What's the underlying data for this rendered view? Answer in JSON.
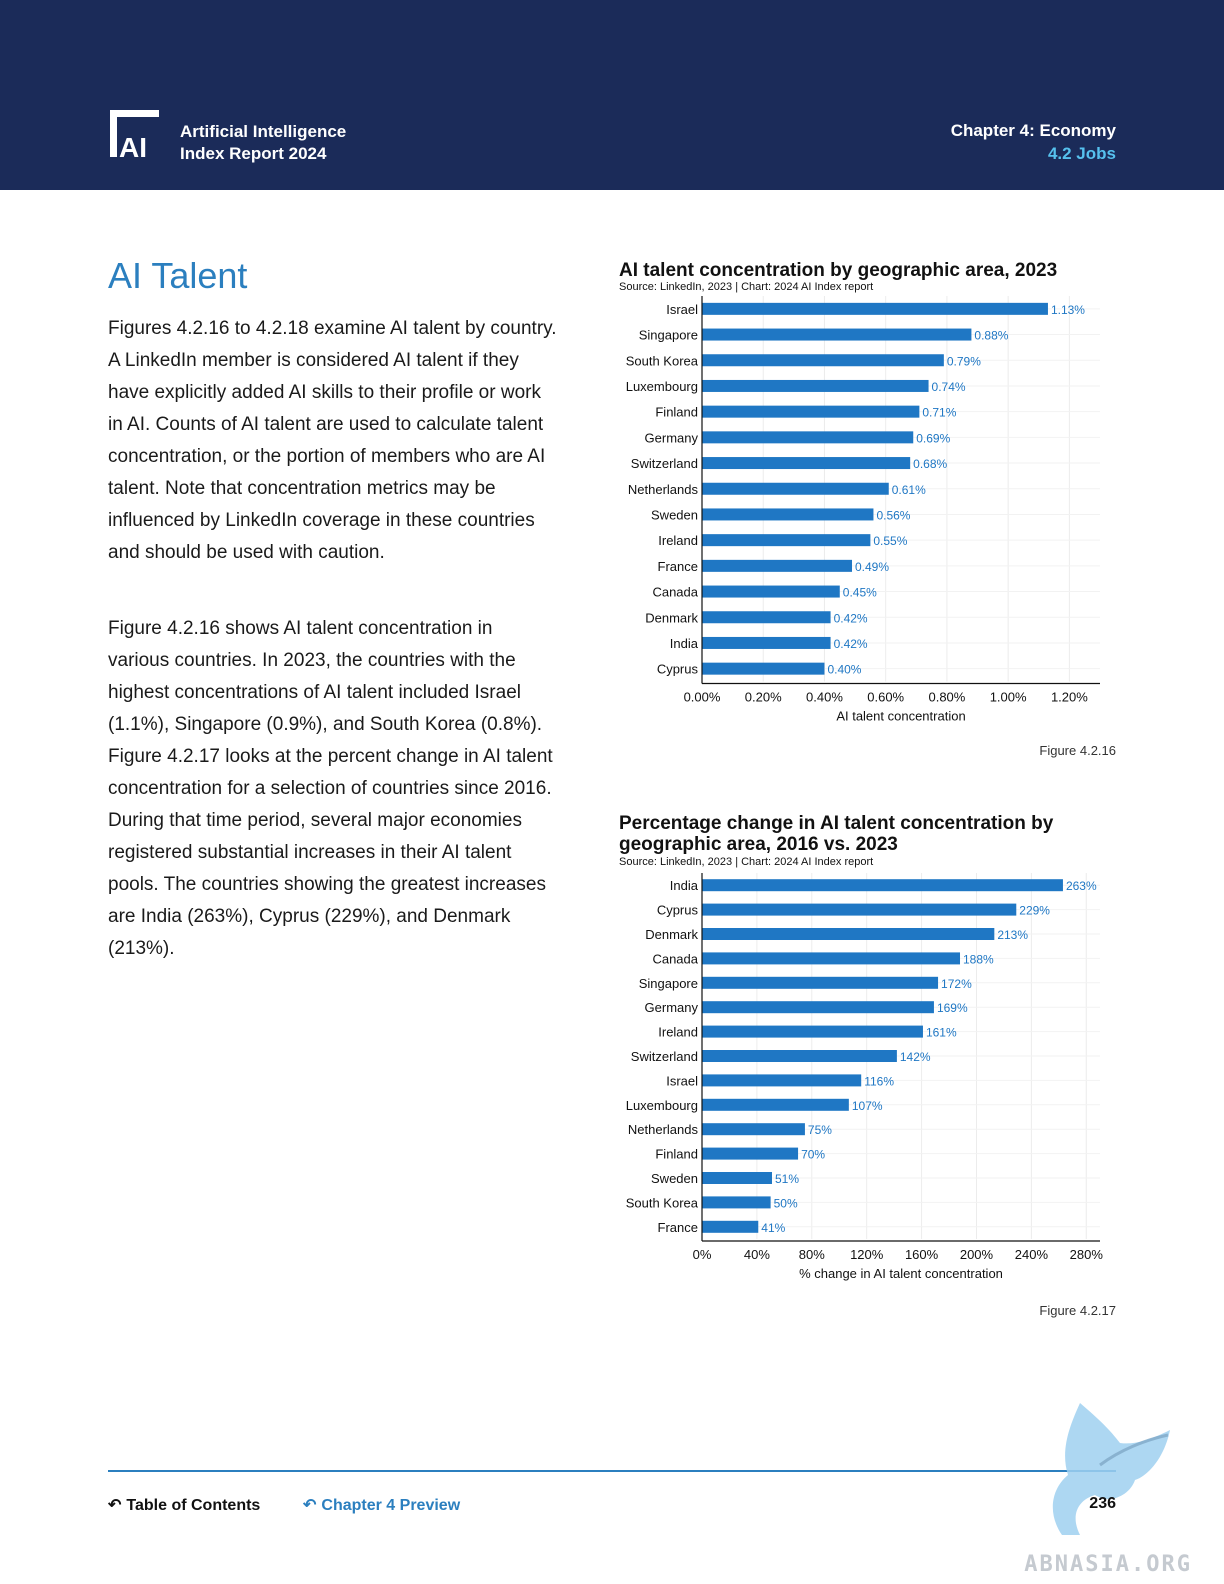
{
  "header": {
    "report_line1": "Artificial Intelligence",
    "report_line2": "Index Report 2024",
    "chapter": "Chapter 4: Economy",
    "section": "4.2 Jobs",
    "logo_text": "AI"
  },
  "main": {
    "title": "AI Talent",
    "paragraph1": "Figures 4.2.16 to 4.2.18 examine AI talent by country. A LinkedIn member is considered AI talent if they have explicitly added AI skills to their profile or work in AI. Counts of AI talent are used to calculate talent concentration, or the portion of members who are AI talent. Note that concentration metrics may be influenced by LinkedIn coverage in these countries and should be used with caution.",
    "paragraph2": "Figure 4.2.16 shows AI talent concentration in various countries. In 2023, the countries with the highest concentrations of AI talent included Israel (1.1%), Singapore (0.9%), and South Korea (0.8%). Figure 4.2.17 looks at the percent change in AI talent concentration for a selection of countries since 2016. During that time period, several major economies registered substantial increases in their AI talent pools. The countries showing the greatest increases are India (263%), Cyprus (229%), and Denmark (213%)."
  },
  "chart_data": [
    {
      "type": "bar",
      "orientation": "horizontal",
      "title": "AI talent concentration by geographic area, 2023",
      "source": "Source: LinkedIn, 2023 | Chart: 2024 AI Index report",
      "figure": "Figure 4.2.16",
      "categories": [
        "Israel",
        "Singapore",
        "South Korea",
        "Luxembourg",
        "Finland",
        "Germany",
        "Switzerland",
        "Netherlands",
        "Sweden",
        "Ireland",
        "France",
        "Canada",
        "Denmark",
        "India",
        "Cyprus"
      ],
      "values": [
        1.13,
        0.88,
        0.79,
        0.74,
        0.71,
        0.69,
        0.68,
        0.61,
        0.56,
        0.55,
        0.49,
        0.45,
        0.42,
        0.42,
        0.4
      ],
      "value_labels": [
        "1.13%",
        "0.88%",
        "0.79%",
        "0.74%",
        "0.71%",
        "0.69%",
        "0.68%",
        "0.61%",
        "0.56%",
        "0.55%",
        "0.49%",
        "0.45%",
        "0.42%",
        "0.42%",
        "0.40%"
      ],
      "xlabel": "AI talent concentration",
      "xlim": [
        0,
        1.3
      ],
      "ticks": [
        0,
        0.2,
        0.4,
        0.6,
        0.8,
        1.0,
        1.2
      ],
      "tick_labels": [
        "0.00%",
        "0.20%",
        "0.40%",
        "0.60%",
        "0.80%",
        "1.00%",
        "1.20%"
      ],
      "grid": true,
      "color": "#1f77c4"
    },
    {
      "type": "bar",
      "orientation": "horizontal",
      "title": "Percentage change in AI talent concentration by geographic area, 2016 vs. 2023",
      "source": "Source: LinkedIn, 2023 | Chart: 2024 AI Index report",
      "figure": "Figure 4.2.17",
      "categories": [
        "India",
        "Cyprus",
        "Denmark",
        "Canada",
        "Singapore",
        "Germany",
        "Ireland",
        "Switzerland",
        "Israel",
        "Luxembourg",
        "Netherlands",
        "Finland",
        "Sweden",
        "South Korea",
        "France"
      ],
      "values": [
        263,
        229,
        213,
        188,
        172,
        169,
        161,
        142,
        116,
        107,
        75,
        70,
        51,
        50,
        41
      ],
      "value_labels": [
        "263%",
        "229%",
        "213%",
        "188%",
        "172%",
        "169%",
        "161%",
        "142%",
        "116%",
        "107%",
        "75%",
        "70%",
        "51%",
        "50%",
        "41%"
      ],
      "xlabel": "% change in AI talent concentration",
      "xlim": [
        0,
        290
      ],
      "ticks": [
        0,
        40,
        80,
        120,
        160,
        200,
        240,
        280
      ],
      "tick_labels": [
        "0%",
        "40%",
        "80%",
        "120%",
        "160%",
        "200%",
        "240%",
        "280%"
      ],
      "grid": true,
      "color": "#1f77c4"
    }
  ],
  "footer": {
    "toc_label": "Table of Contents",
    "preview_label": "Chapter 4 Preview",
    "page_number": "236",
    "toc_icon": "return-arrow-icon",
    "preview_icon": "return-arrow-icon"
  },
  "watermark": {
    "text": "ABNASIA.ORG",
    "icon": "griffin-watermark-icon"
  },
  "colors": {
    "header_bg": "#1b2b59",
    "accent": "#2b7fbf",
    "section_link": "#56c1ee",
    "bar": "#1f77c4"
  }
}
